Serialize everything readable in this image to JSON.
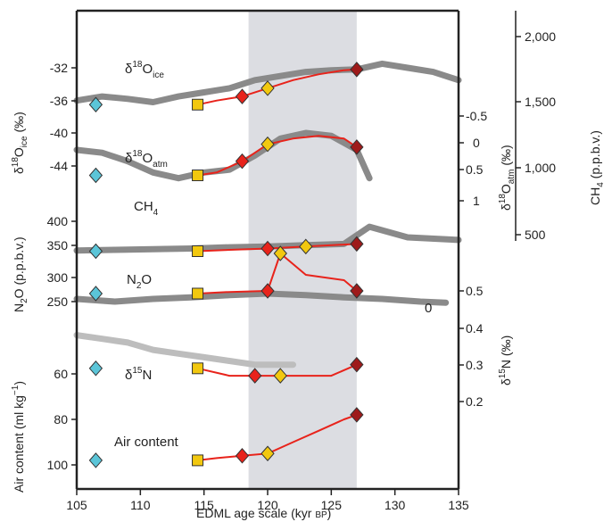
{
  "chart_data": {
    "type": "line",
    "title": "",
    "xlabel": "EDML age scale (kyr BP)",
    "xlabel_main": "EDML age scale (kyr ",
    "xlabel_sc": "BP",
    "xlabel_end": ")",
    "xlim": [
      105,
      135
    ],
    "x_ticks": [
      "105",
      "110",
      "115",
      "120",
      "125",
      "130",
      "135"
    ],
    "shaded_interval": [
      118.5,
      127
    ],
    "grid": false,
    "colors": {
      "grey_curve": "#8a8a8a",
      "light_grey": "#bdbdbd",
      "shade": "#dcdde2",
      "red": "#e8231b",
      "dark_red": "#9e1a1a",
      "yellow": "#f2c80f",
      "green": "#8cc63f",
      "cyan": "#5bc5d8",
      "dark_blue": "#1b2a8a"
    },
    "panels": {
      "d18O_ice": {
        "label_base": "δ",
        "label_sup": "18",
        "label_main": "O",
        "label_sub": "ice",
        "axis": {
          "label": "δ18Oice (‰)",
          "ticks": [
            "-32",
            "-36",
            "-40",
            "-44"
          ]
        },
        "series": [
          {
            "name": "reference",
            "x": [
              105,
              107,
              109,
              111,
              113,
              115,
              117,
              119,
              121,
              123,
              125,
              127,
              129,
              131,
              133,
              135
            ],
            "y": [
              -36,
              -35.5,
              -35.8,
              -36.2,
              -35.5,
              -35,
              -34.5,
              -33.5,
              -33,
              -32.5,
              -32.3,
              -32.2,
              -31.5,
              -32,
              -32.5,
              -33.5
            ]
          },
          {
            "name": "synthesis",
            "x": [
              114.5,
              116,
              118,
              120,
              122,
              124,
              126,
              127
            ],
            "y": [
              -36.5,
              -36,
              -35.5,
              -34.5,
              -33.5,
              -32.8,
              -32.3,
              -32.2
            ]
          }
        ]
      },
      "d18O_atm": {
        "label_base": "δ",
        "label_sup": "18",
        "label_main": "O",
        "label_sub": "atm",
        "axis": {
          "label": "δ18Oatm (‰)",
          "ticks": [
            "-0.5",
            "0",
            "0.5",
            "1"
          ]
        },
        "series": [
          {
            "name": "reference",
            "x": [
              105,
              107,
              109,
              111,
              113,
              115,
              117,
              119,
              121,
              123,
              125,
              127,
              128
            ],
            "y": [
              0.1,
              0.15,
              0.3,
              0.5,
              0.6,
              0.5,
              0.45,
              0.2,
              -0.1,
              -0.2,
              -0.15,
              0.1,
              0.6
            ]
          },
          {
            "name": "synthesis",
            "x": [
              114.5,
              116,
              118,
              120,
              122,
              124,
              126,
              127
            ],
            "y": [
              0.55,
              0.5,
              0.3,
              0.0,
              -0.1,
              -0.15,
              -0.1,
              0.05
            ]
          }
        ]
      },
      "CH4": {
        "label": "CH",
        "label_sub": "4",
        "axis": {
          "label": "CH4 (p.p.b.v.)",
          "ticks": [
            "2,000",
            "1,500",
            "1,000",
            "500"
          ]
        },
        "series": [
          {
            "name": "reference",
            "x": [
              105,
              108,
              111,
              114,
              117,
              120,
              123,
              126,
              128,
              131,
              135
            ],
            "y": [
              380,
              385,
              390,
              395,
              405,
              410,
              420,
              430,
              560,
              480,
              460
            ]
          },
          {
            "name": "synthesis",
            "x": [
              114.5,
              117,
              120,
              123,
              126,
              127
            ],
            "y": [
              375,
              385,
              395,
              410,
              425,
              430
            ]
          }
        ]
      },
      "N2O": {
        "label": "N",
        "label_sub": "2",
        "label_end": "O",
        "axis": {
          "label": "N2O (p.p.b.v.)",
          "ticks": [
            "400",
            "350",
            "300",
            "250"
          ]
        },
        "annotation": "0",
        "series": [
          {
            "name": "reference",
            "x": [
              105,
              108,
              111,
              114,
              117,
              120,
              123,
              126,
              129,
              132,
              134
            ],
            "y": [
              255,
              250,
              255,
              258,
              262,
              265,
              262,
              258,
              255,
              250,
              248
            ]
          },
          {
            "name": "synthesis",
            "x": [
              114.5,
              117,
              120,
              121,
              123,
              126,
              127
            ],
            "y": [
              265,
              268,
              270,
              340,
              300,
              290,
              270
            ]
          }
        ]
      },
      "d15N": {
        "label_base": "δ",
        "label_sup": "15",
        "label_main": "N",
        "axis": {
          "label": "δ15N (‰)",
          "ticks": [
            "0.5",
            "0.4",
            "0.3",
            "0.2"
          ]
        },
        "series": [
          {
            "name": "reference",
            "x": [
              105,
              107,
              109,
              111,
              113,
              115,
              117,
              119,
              121,
              122
            ],
            "y": [
              0.38,
              0.37,
              0.36,
              0.34,
              0.33,
              0.32,
              0.31,
              0.3,
              0.3,
              0.3
            ]
          },
          {
            "name": "synthesis",
            "x": [
              114.5,
              117,
              119,
              121,
              123,
              125,
              127
            ],
            "y": [
              0.29,
              0.27,
              0.27,
              0.27,
              0.27,
              0.27,
              0.3
            ]
          }
        ]
      },
      "air_content": {
        "label": "Air content",
        "axis": {
          "label": "Air content (ml kg−1)",
          "ticks": [
            "60",
            "80",
            "100"
          ]
        },
        "series": [
          {
            "name": "synthesis",
            "x": [
              114.5,
              116,
              118,
              120,
              122,
              124,
              126,
              127
            ],
            "y": [
              98,
              97,
              96,
              95,
              90,
              85,
              80,
              78
            ]
          }
        ]
      }
    },
    "left_axis_labels": {
      "ice": {
        "base": "δ",
        "sup": "18",
        "main": "O",
        "sub": "ice",
        "end": " (‰)"
      },
      "n2o": {
        "main": "N",
        "sub": "2",
        "end": "O (p.p.b.v.)"
      },
      "air": {
        "main": "Air content (ml kg",
        "sup": "−1",
        "end": ")"
      }
    },
    "right_axis_labels": {
      "atm": {
        "base": "δ",
        "sup": "18",
        "main": "O",
        "sub": "atm",
        "end": " (‰)"
      },
      "ch4": {
        "main": "CH",
        "sub": "4",
        "end": " (p.p.b.v.)"
      },
      "d15n": {
        "base": "δ",
        "sup": "15",
        "main": "N (‰)"
      }
    }
  }
}
